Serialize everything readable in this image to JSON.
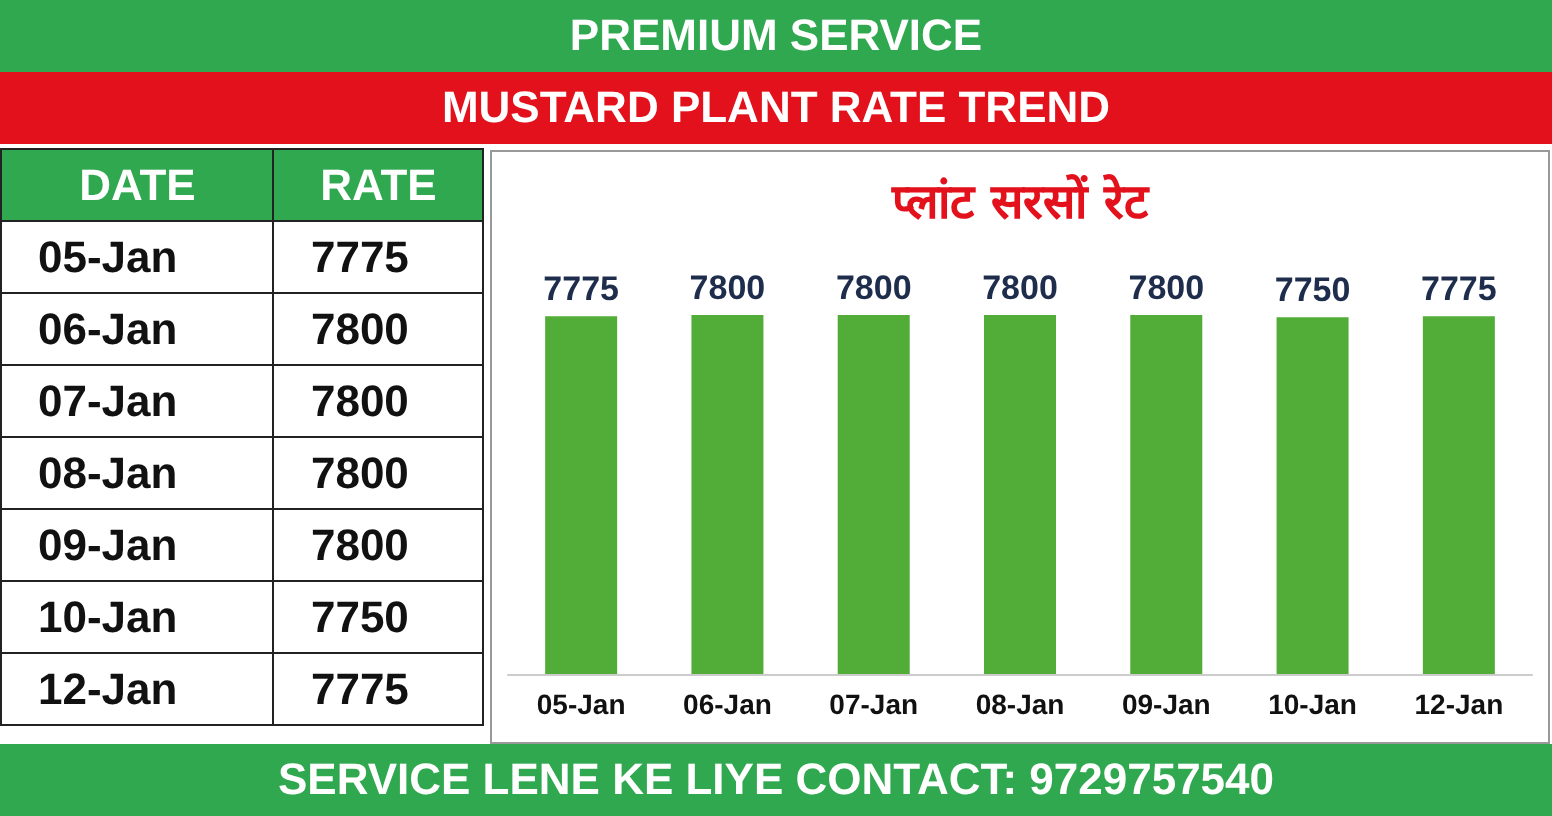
{
  "chart_data": {
    "type": "bar",
    "title": "प्लांट सरसों रेट",
    "annotations": [
      "PREMIUM SERVICE",
      "MUSTARD PLANT RATE TREND",
      "DATE",
      "RATE",
      "SERVICE LENE KE LIYE CONTACT: 9729757540"
    ],
    "categories": [
      "05-Jan",
      "06-Jan",
      "07-Jan",
      "08-Jan",
      "09-Jan",
      "10-Jan",
      "12-Jan"
    ],
    "values": [
      7775,
      7800,
      7800,
      7800,
      7800,
      7750,
      7775
    ],
    "value_labels": [
      "7775",
      "7800",
      "7800",
      "7800",
      "7800",
      "7750",
      "7775"
    ],
    "color": "#52ad38"
  }
}
